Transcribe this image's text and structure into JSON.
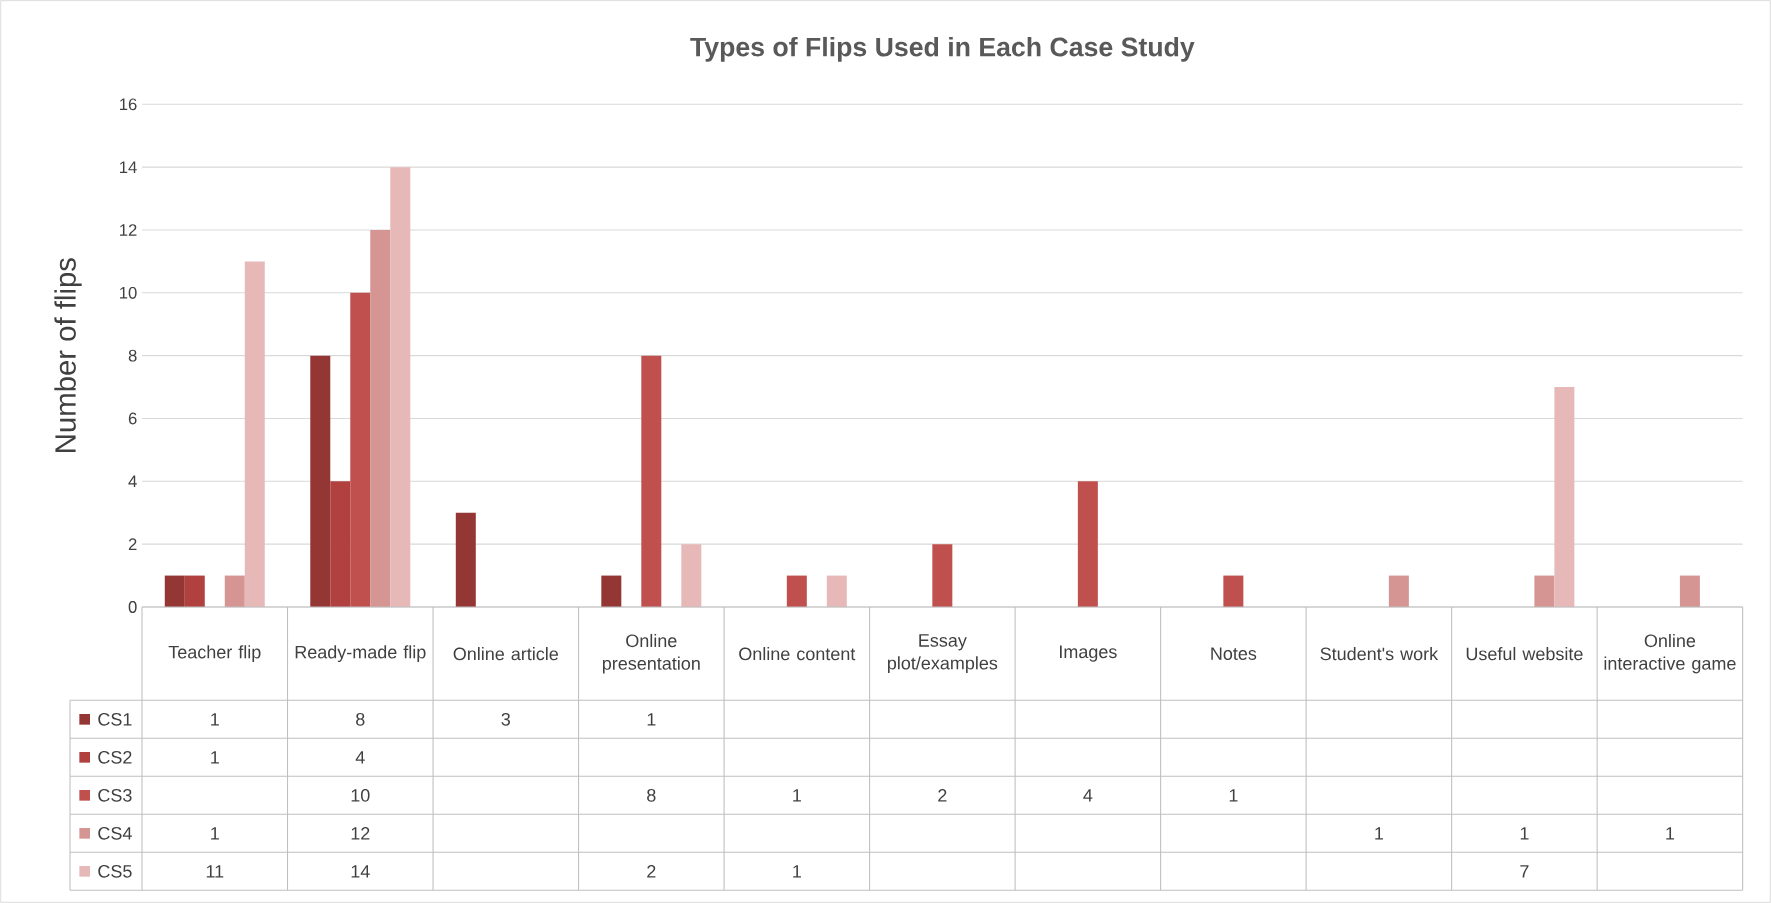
{
  "chart_data": {
    "type": "bar",
    "title": "Types of Flips Used in Each Case Study",
    "ylabel": "Number of flips",
    "categories": [
      "Teacher flip",
      "Ready-made flip",
      "Online article",
      "Online presentation",
      "Online content",
      "Essay plot/examples",
      "Images",
      "Notes",
      "Student's work",
      "Useful website",
      "Online interactive game"
    ],
    "series": [
      {
        "name": "CS1",
        "color": "#943634",
        "values": [
          1,
          8,
          3,
          1,
          null,
          null,
          null,
          null,
          null,
          null,
          null
        ]
      },
      {
        "name": "CS2",
        "color": "#B0413E",
        "values": [
          1,
          4,
          null,
          null,
          null,
          null,
          null,
          null,
          null,
          null,
          null
        ]
      },
      {
        "name": "CS3",
        "color": "#C0504D",
        "values": [
          null,
          10,
          null,
          8,
          1,
          2,
          4,
          1,
          null,
          null,
          null
        ]
      },
      {
        "name": "CS4",
        "color": "#D49593",
        "values": [
          1,
          12,
          null,
          null,
          null,
          null,
          null,
          null,
          1,
          1,
          1
        ]
      },
      {
        "name": "CS5",
        "color": "#E6B9B8",
        "values": [
          11,
          14,
          null,
          2,
          1,
          null,
          null,
          null,
          null,
          7,
          null
        ]
      }
    ],
    "ylim": [
      0,
      16
    ],
    "yticks": [
      0,
      2,
      4,
      6,
      8,
      10,
      12,
      14,
      16
    ],
    "grid": "y",
    "legend": "bottom",
    "data_labels": true
  }
}
